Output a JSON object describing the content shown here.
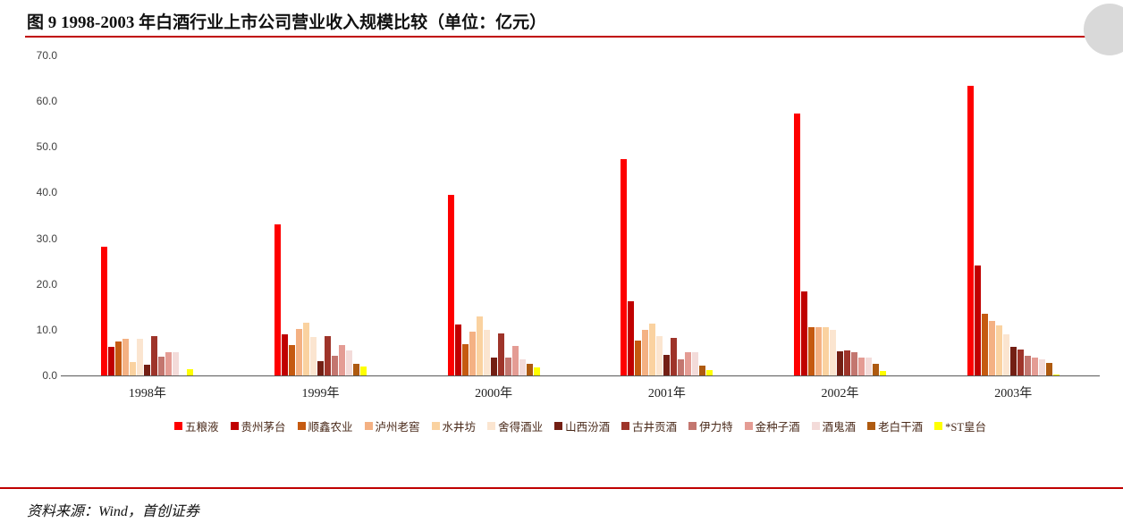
{
  "page": {
    "title": "图 9 1998-2003 年白酒行业上市公司营业收入规模比较（单位：亿元）",
    "source": "资料来源：Wind，首创证券"
  },
  "chart_data": {
    "type": "bar",
    "title": "1998-2003 年白酒行业上市公司营业收入规模比较",
    "unit": "亿元",
    "grid": false,
    "legend_position": "bottom",
    "ylim": [
      0,
      70
    ],
    "y_ticks": [
      "0.0",
      "10.0",
      "20.0",
      "30.0",
      "40.0",
      "50.0",
      "60.0",
      "70.0"
    ],
    "categories": [
      "1998年",
      "1999年",
      "2000年",
      "2001年",
      "2002年",
      "2003年"
    ],
    "series": [
      {
        "name": "五粮液",
        "color": "#fe0000",
        "values": [
          28.1,
          33.0,
          39.5,
          47.3,
          57.2,
          63.4
        ]
      },
      {
        "name": "贵州茅台",
        "color": "#c00000",
        "values": [
          6.3,
          9.0,
          11.2,
          16.2,
          18.4,
          24.1
        ]
      },
      {
        "name": "顺鑫农业",
        "color": "#c55a11",
        "values": [
          7.4,
          6.6,
          6.9,
          7.6,
          10.6,
          13.5
        ]
      },
      {
        "name": "泸州老窖",
        "color": "#f4b183",
        "values": [
          8.1,
          10.2,
          9.5,
          9.9,
          10.6,
          12.0
        ]
      },
      {
        "name": "水井坊",
        "color": "#fad2a0",
        "values": [
          3.0,
          11.6,
          13.0,
          11.4,
          10.5,
          11.0
        ]
      },
      {
        "name": "舍得酒业",
        "color": "#fbe5d0",
        "values": [
          8.0,
          8.5,
          10.0,
          8.6,
          10.0,
          9.0
        ]
      },
      {
        "name": "山西汾酒",
        "color": "#731f14",
        "values": [
          2.4,
          3.1,
          4.0,
          4.5,
          5.2,
          6.2
        ]
      },
      {
        "name": "古井贡酒",
        "color": "#9e342a",
        "values": [
          8.6,
          8.7,
          9.1,
          8.2,
          5.5,
          5.6
        ]
      },
      {
        "name": "伊力特",
        "color": "#c3766f",
        "values": [
          4.1,
          4.4,
          4.0,
          3.6,
          5.0,
          4.4
        ]
      },
      {
        "name": "金种子酒",
        "color": "#e49c94",
        "values": [
          5.0,
          6.6,
          6.5,
          5.1,
          4.0,
          3.9
        ]
      },
      {
        "name": "酒鬼酒",
        "color": "#f3dbd9",
        "values": [
          5.0,
          5.5,
          3.5,
          5.0,
          4.0,
          3.5
        ]
      },
      {
        "name": "老白干酒",
        "color": "#ae5a10",
        "values": [
          0.0,
          2.6,
          2.5,
          2.2,
          2.6,
          2.7
        ]
      },
      {
        "name": "*ST皇台",
        "color": "#ffff00",
        "values": [
          1.4,
          1.9,
          1.8,
          1.1,
          0.9,
          0.2
        ]
      }
    ]
  }
}
